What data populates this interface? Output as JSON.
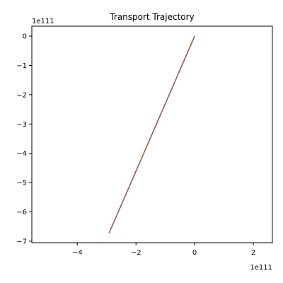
{
  "chart_data": {
    "type": "line",
    "title": "Transport Trajectory",
    "xlabel": "",
    "ylabel": "",
    "x_offset_label": "1e111",
    "y_offset_label": "1e111",
    "xlim": [
      -5.55,
      2.65
    ],
    "ylim": [
      -7.05,
      0.34
    ],
    "x_ticks": [
      -4,
      -2,
      0,
      2
    ],
    "x_tick_labels": [
      "−4",
      "−2",
      "0",
      "2"
    ],
    "y_ticks": [
      0,
      -1,
      -2,
      -3,
      -4,
      -5,
      -6,
      -7
    ],
    "y_tick_labels": [
      "0",
      "−1",
      "−2",
      "−3",
      "−4",
      "−5",
      "−6",
      "−7"
    ],
    "grid": false,
    "series": [
      {
        "color": "#8c564b",
        "x": [
          0,
          -2.92
        ],
        "y": [
          0,
          -6.73
        ]
      }
    ]
  }
}
